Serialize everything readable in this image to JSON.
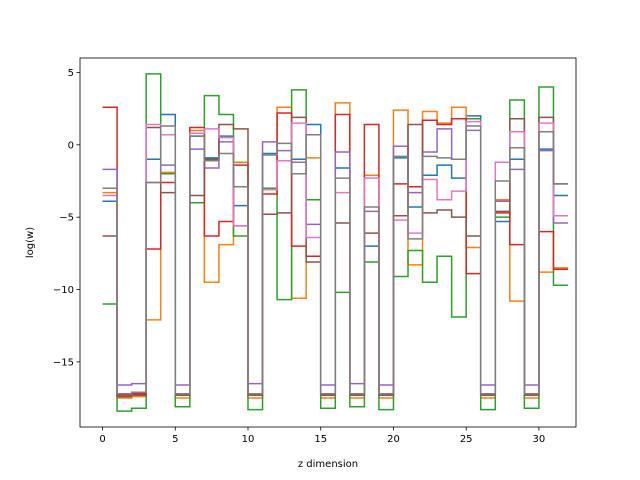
{
  "chart_data": {
    "type": "line",
    "drawstyle": "steps-post",
    "title": "",
    "xlabel": "z dimension",
    "ylabel": "log(w)",
    "xlim": [
      -1.55,
      32.55
    ],
    "ylim": [
      -19.5,
      6.0
    ],
    "xticks": [
      0,
      5,
      10,
      15,
      20,
      25,
      30
    ],
    "yticks": [
      -15,
      -10,
      -5,
      0,
      5
    ],
    "grid": false,
    "legend": "none",
    "x": [
      0,
      1,
      2,
      3,
      4,
      5,
      6,
      7,
      8,
      9,
      10,
      11,
      12,
      13,
      14,
      15,
      16,
      17,
      18,
      19,
      20,
      21,
      22,
      23,
      24,
      25,
      26,
      27,
      28,
      29,
      30,
      31
    ],
    "series": [
      {
        "color": "#1f77b4",
        "values": [
          -3.9,
          -17.4,
          -17.3,
          -1.0,
          2.1,
          -17.3,
          0.6,
          -0.9,
          0.6,
          -4.2,
          -17.3,
          -0.6,
          -1.1,
          -1.0,
          1.4,
          -17.3,
          -1.6,
          -17.3,
          -7.0,
          -17.3,
          -0.9,
          -4.3,
          -2.1,
          -1.4,
          -2.3,
          2.0,
          -17.3,
          -5.3,
          -1.0,
          -17.3,
          -0.3,
          -3.5
        ]
      },
      {
        "color": "#ff7f0e",
        "values": [
          -3.3,
          -17.5,
          -17.4,
          -12.1,
          -1.9,
          -17.5,
          1.0,
          -9.5,
          -6.9,
          -1.2,
          -17.5,
          -3.1,
          2.6,
          -10.6,
          -0.9,
          -17.5,
          2.9,
          -17.5,
          -2.1,
          -17.5,
          2.4,
          -8.3,
          2.3,
          1.5,
          2.6,
          -7.1,
          -17.5,
          -3.8,
          -10.8,
          -17.5,
          -8.8,
          -8.5
        ]
      },
      {
        "color": "#2ca02c",
        "values": [
          -11.0,
          -18.4,
          -18.2,
          4.9,
          -2.0,
          -18.1,
          -4.0,
          3.4,
          2.1,
          -6.3,
          -18.3,
          -3.0,
          -10.7,
          3.8,
          -3.8,
          -18.2,
          -10.2,
          -18.1,
          -8.1,
          -18.3,
          -9.1,
          -7.3,
          -9.5,
          -7.7,
          -11.9,
          1.8,
          -18.3,
          -5.0,
          3.1,
          -18.2,
          4.0,
          -9.7
        ]
      },
      {
        "color": "#d62728",
        "values": [
          2.6,
          -17.3,
          -17.2,
          -7.2,
          -2.6,
          -17.2,
          1.2,
          -6.3,
          -5.3,
          -1.4,
          -17.2,
          -3.4,
          2.2,
          -7.0,
          -7.7,
          -17.2,
          2.1,
          -17.2,
          1.4,
          -17.2,
          -2.7,
          -2.9,
          1.7,
          1.4,
          1.8,
          -8.9,
          -17.2,
          -4.7,
          -6.9,
          -17.2,
          -6.0,
          -8.6
        ]
      },
      {
        "color": "#9467bd",
        "values": [
          -1.7,
          -16.6,
          -16.5,
          -2.6,
          -1.4,
          -16.6,
          -0.3,
          -1.6,
          0.2,
          -5.6,
          -16.5,
          0.2,
          -0.4,
          -1.2,
          -5.5,
          -16.6,
          -0.5,
          -16.5,
          -4.6,
          -16.6,
          -0.1,
          -3.3,
          -0.5,
          1.1,
          -1.0,
          1.0,
          -16.6,
          -3.9,
          -1.7,
          -16.6,
          -0.4,
          -5.4
        ]
      },
      {
        "color": "#8c564b",
        "values": [
          -6.3,
          -17.4,
          -17.3,
          1.2,
          -3.3,
          -17.3,
          -3.5,
          -1.0,
          1.4,
          1.1,
          -17.3,
          -4.8,
          -4.7,
          1.9,
          -8.1,
          -17.3,
          -5.4,
          -17.3,
          -6.1,
          -17.3,
          -4.9,
          1.4,
          -4.7,
          -4.5,
          -5.0,
          -6.3,
          -17.3,
          -4.6,
          1.8,
          -17.3,
          1.9,
          -2.7
        ]
      },
      {
        "color": "#e377c2",
        "values": [
          -3.5,
          -17.2,
          -17.1,
          1.4,
          0.7,
          -17.2,
          0.8,
          1.1,
          0.5,
          -5.6,
          -17.2,
          -3.1,
          -1.1,
          1.5,
          -6.4,
          -17.2,
          -3.3,
          -17.2,
          -2.3,
          -17.2,
          -5.2,
          -6.1,
          -2.4,
          -3.8,
          -3.2,
          1.6,
          -17.2,
          -1.2,
          0.9,
          -17.2,
          1.5,
          -4.9
        ]
      },
      {
        "color": "#7f7f7f",
        "values": [
          -3.0,
          -17.2,
          -17.1,
          -2.6,
          1.3,
          -17.2,
          0.6,
          -1.1,
          -0.6,
          -2.9,
          -17.2,
          -0.7,
          0.1,
          -2.0,
          0.7,
          -17.2,
          -2.3,
          -17.2,
          -4.3,
          -17.2,
          -0.8,
          -6.5,
          -0.8,
          -0.9,
          -1.0,
          1.3,
          -17.2,
          -2.5,
          -0.2,
          -17.2,
          0.9,
          -2.7
        ]
      }
    ]
  }
}
